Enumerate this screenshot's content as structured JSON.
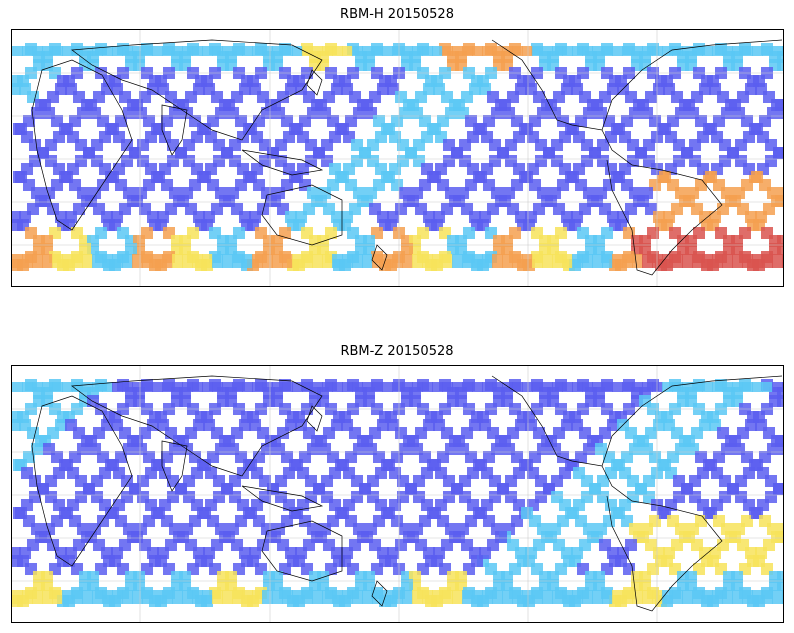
{
  "figure": {
    "panels": [
      {
        "id": "rbm-h",
        "title": "RBM-H 20150528",
        "palette_bias": "south-hot"
      },
      {
        "id": "rbm-z",
        "title": "RBM-Z 20150528",
        "palette_bias": "cool"
      }
    ]
  },
  "colors": {
    "track_blue": "#5a5ef0",
    "track_light": "#5bc8f5",
    "track_yellow": "#f7e35a",
    "track_orange": "#f5a050",
    "track_red": "#d9534f",
    "coast": "#000000",
    "grid": "#cccccc"
  }
}
